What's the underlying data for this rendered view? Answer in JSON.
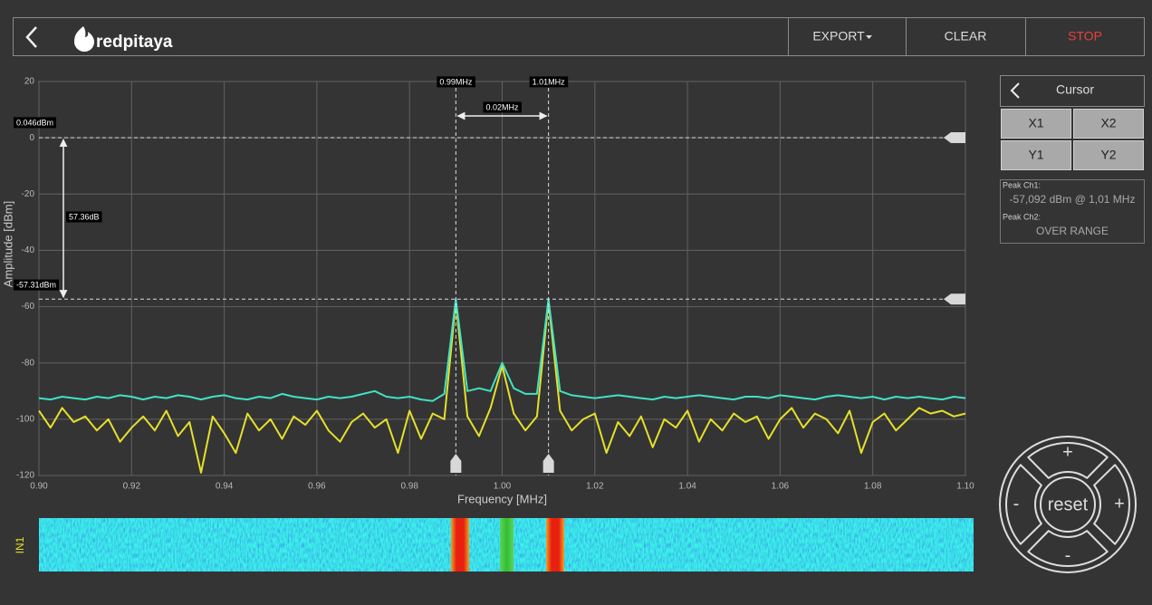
{
  "header": {
    "logo": "redpitaya",
    "buttons": [
      "EXPORT",
      "CLEAR",
      "STOP"
    ]
  },
  "chart_data": {
    "type": "line",
    "x_label": "Frequency [MHz]",
    "y_label": "Amplitude [dBm]",
    "xlim": [
      0.9,
      1.1
    ],
    "xticks": [
      {
        "value": 0.9,
        "label": "0.90"
      },
      0.92,
      0.94,
      0.96,
      0.98,
      {
        "value": 1.0,
        "label": "1.00"
      },
      1.02,
      1.04,
      1.06,
      1.08,
      {
        "value": 1.1,
        "label": "1.10"
      }
    ],
    "ylim": [
      -120,
      20
    ],
    "yticks": [
      -120,
      -100,
      -80,
      -60,
      -40,
      -20,
      0,
      20
    ],
    "grid": true,
    "x": [
      0.9,
      0.9025,
      0.905,
      0.9075,
      0.91,
      0.9125,
      0.915,
      0.9175,
      0.92,
      0.9225,
      0.925,
      0.9275,
      0.93,
      0.9325,
      0.935,
      0.9375,
      0.94,
      0.9425,
      0.945,
      0.9475,
      0.95,
      0.9525,
      0.955,
      0.9575,
      0.96,
      0.9625,
      0.965,
      0.9675,
      0.97,
      0.9725,
      0.975,
      0.9775,
      0.98,
      0.9825,
      0.985,
      0.9875,
      0.99,
      0.9925,
      0.995,
      0.9975,
      1.0,
      1.0025,
      1.005,
      1.0075,
      1.01,
      1.0125,
      1.015,
      1.0175,
      1.02,
      1.0225,
      1.025,
      1.0275,
      1.03,
      1.0325,
      1.035,
      1.0375,
      1.04,
      1.0425,
      1.045,
      1.0475,
      1.05,
      1.0525,
      1.055,
      1.0575,
      1.06,
      1.0625,
      1.065,
      1.0675,
      1.07,
      1.0725,
      1.075,
      1.0775,
      1.08,
      1.0825,
      1.085,
      1.0875,
      1.09,
      1.0925,
      1.095,
      1.0975,
      1.1
    ],
    "series": [
      {
        "color": "#e6e02a",
        "values": [
          -97,
          -103,
          -96,
          -101,
          -99,
          -104,
          -100,
          -108,
          -103,
          -99,
          -104,
          -97,
          -106,
          -101,
          -119,
          -99,
          -105,
          -112,
          -98,
          -104,
          -100,
          -107,
          -99,
          -102,
          -97,
          -104,
          -108,
          -101,
          -98,
          -103,
          -100,
          -112,
          -97,
          -107,
          -98,
          -100,
          -58,
          -99,
          -106,
          -96,
          -81,
          -98,
          -104,
          -99,
          -58,
          -97,
          -104,
          -100,
          -98,
          -112,
          -101,
          -106,
          -99,
          -110,
          -100,
          -103,
          -97,
          -108,
          -100,
          -104,
          -98,
          -101,
          -99,
          -107,
          -100,
          -96,
          -103,
          -98,
          -100,
          -105,
          -97,
          -112,
          -101,
          -98,
          -104,
          -100,
          -96,
          -98,
          -97,
          -99,
          -98
        ]
      },
      {
        "color": "#40e2c4",
        "values": [
          -92.5,
          -93,
          -92,
          -92.5,
          -93,
          -92,
          -92.5,
          -91.5,
          -92,
          -93,
          -92,
          -92.5,
          -91.5,
          -92,
          -93,
          -92,
          -91.5,
          -92.5,
          -93,
          -92,
          -92.5,
          -91,
          -92,
          -92.5,
          -93,
          -92,
          -92.5,
          -92,
          -91,
          -90,
          -92,
          -92.5,
          -92,
          -93,
          -93.5,
          -91,
          -57.3,
          -90,
          -89,
          -90,
          -80,
          -89,
          -91,
          -91,
          -57.3,
          -90,
          -91.5,
          -92,
          -92.5,
          -92,
          -91.5,
          -92,
          -92.5,
          -93,
          -92,
          -92.5,
          -92,
          -91.5,
          -92,
          -92.5,
          -93,
          -92,
          -92,
          -92.5,
          -91.5,
          -92,
          -92.5,
          -93,
          -92,
          -91.5,
          -92,
          -92.5,
          -92,
          -93,
          -92,
          -92.5,
          -92,
          -92.5,
          -93,
          -92,
          -92.5
        ]
      }
    ],
    "cursors": {
      "x1": {
        "value": 0.99,
        "label": "0.99MHz"
      },
      "x2": {
        "value": 1.01,
        "label": "1.01MHz"
      },
      "dx": {
        "value": 0.02,
        "label": "0.02MHz"
      },
      "y1": {
        "value": 0.046,
        "label": "0.046dBm"
      },
      "y2": {
        "value": -57.31,
        "label": "-57.31dBm"
      },
      "dy": {
        "value": 57.36,
        "label": "57.36dB"
      }
    }
  },
  "waterfall": {
    "channel": "IN1"
  },
  "cursor_panel": {
    "title": "Cursor",
    "buttons": [
      "X1",
      "X2",
      "Y1",
      "Y2"
    ],
    "peaks": [
      {
        "label": "Peak Ch1:",
        "value": "-57,092 dBm @ 1,01 MHz"
      },
      {
        "label": "Peak Ch2:",
        "value": "OVER RANGE"
      }
    ]
  },
  "controls": {
    "up": "+",
    "right": "+",
    "down": "-",
    "left": "-",
    "center": "reset"
  }
}
